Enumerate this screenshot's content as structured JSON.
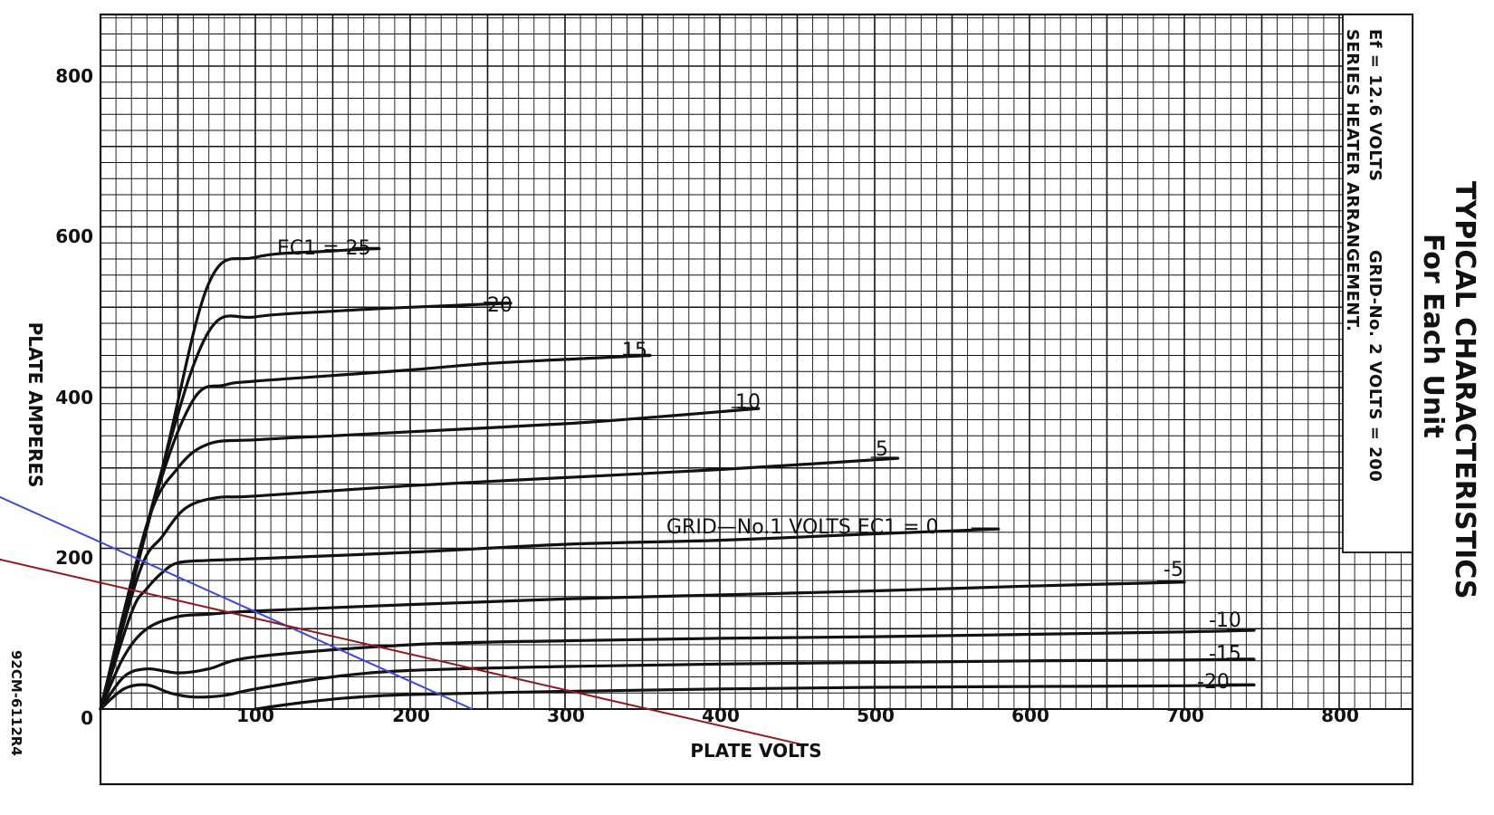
{
  "chart_data": {
    "type": "line",
    "title": "TYPICAL CHARACTERISTICS",
    "subtitle": "For Each Unit",
    "xlabel": "PLATE VOLTS",
    "ylabel": "PLATE AMPERES",
    "xlim": [
      0,
      850
    ],
    "ylim": [
      0,
      900
    ],
    "x_ticks": [
      "100",
      "200",
      "300",
      "400",
      "500",
      "600",
      "700",
      "800"
    ],
    "y_ticks": [
      "0",
      "200",
      "400",
      "600",
      "800"
    ],
    "grid": true,
    "notes": {
      "heater": "Ef = 12.6 VOLTS",
      "grid2": "GRID-No. 2 VOLTS = 200",
      "series": "SERIES HEATER ARRANGEMENT."
    },
    "figure_code": "92CM-6112R4",
    "curve_label_main": "GRID—No.1 VOLTS EC1 = 0",
    "curve_label_top": "EC1 = 25",
    "series": [
      {
        "name": "25",
        "label": "EC1 = 25",
        "x": [
          0,
          40,
          70,
          100,
          150,
          180
        ],
        "y": [
          0,
          300,
          530,
          562,
          570,
          573
        ]
      },
      {
        "name": "20",
        "label": "20",
        "x": [
          0,
          40,
          70,
          100,
          150,
          200,
          265
        ],
        "y": [
          0,
          300,
          470,
          488,
          495,
          500,
          505
        ]
      },
      {
        "name": "15",
        "label": "15",
        "x": [
          0,
          35,
          60,
          80,
          100,
          150,
          200,
          250,
          300,
          355
        ],
        "y": [
          0,
          260,
          385,
          403,
          408,
          415,
          422,
          430,
          435,
          440
        ]
      },
      {
        "name": "10",
        "label": "10",
        "x": [
          0,
          30,
          50,
          70,
          100,
          150,
          200,
          300,
          350,
          425
        ],
        "y": [
          0,
          230,
          300,
          330,
          335,
          340,
          345,
          355,
          362,
          374
        ]
      },
      {
        "name": "5",
        "label": "5",
        "x": [
          0,
          25,
          40,
          55,
          75,
          100,
          200,
          300,
          400,
          515
        ],
        "y": [
          0,
          170,
          215,
          250,
          263,
          265,
          278,
          288,
          298,
          312
        ]
      },
      {
        "name": "0",
        "label": "GRID—No.1 VOLTS EC1 = 0",
        "x": [
          0,
          20,
          30,
          40,
          50,
          70,
          100,
          200,
          300,
          400,
          500,
          580
        ],
        "y": [
          0,
          120,
          150,
          170,
          182,
          185,
          187,
          195,
          205,
          210,
          218,
          224
        ]
      },
      {
        "name": "-5",
        "label": "-5",
        "x": [
          0,
          15,
          30,
          50,
          70,
          100,
          200,
          300,
          400,
          500,
          600,
          700
        ],
        "y": [
          0,
          65,
          100,
          115,
          118,
          122,
          130,
          137,
          142,
          147,
          153,
          158
        ]
      },
      {
        "name": "-10",
        "label": "-10",
        "x": [
          0,
          15,
          30,
          50,
          70,
          100,
          200,
          300,
          400,
          500,
          600,
          700,
          745
        ],
        "y": [
          0,
          40,
          50,
          45,
          50,
          65,
          80,
          85,
          88,
          90,
          93,
          96,
          98
        ]
      },
      {
        "name": "-15",
        "label": "-15",
        "x": [
          0,
          15,
          30,
          45,
          60,
          80,
          100,
          150,
          200,
          300,
          400,
          500,
          600,
          700,
          745
        ],
        "y": [
          0,
          25,
          30,
          20,
          15,
          17,
          25,
          40,
          48,
          53,
          56,
          58,
          60,
          61,
          62
        ]
      },
      {
        "name": "-20",
        "label": "-20",
        "x": [
          100,
          130,
          160,
          200,
          300,
          400,
          500,
          600,
          700,
          745
        ],
        "y": [
          0,
          8,
          14,
          18,
          22,
          25,
          27,
          28,
          29,
          30
        ]
      }
    ],
    "load_lines": [
      {
        "color": "#3a49d8",
        "x": [
          -130,
          240
        ],
        "y": [
          320,
          0
        ]
      },
      {
        "color": "#8e1a1a",
        "x": [
          -130,
          455
        ],
        "y": [
          215,
          -45
        ]
      }
    ]
  }
}
